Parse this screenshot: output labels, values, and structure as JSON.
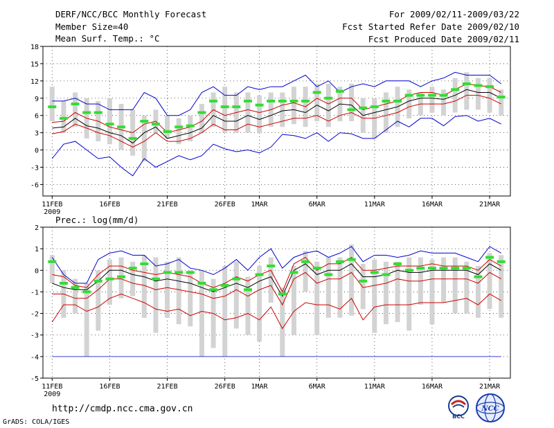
{
  "header": {
    "title": "DERF/NCC/BCC Monthly Forecast",
    "member_size": "Member Size=40",
    "range": "For 2009/02/11-2009/03/22",
    "started": "Fcst Started Refer Date 2009/02/10",
    "produced": "Fcst Produced Date 2009/02/11"
  },
  "footer": {
    "url": "http://cmdp.ncc.cma.gov.cn",
    "grads": "GrADS: COLA/IGES",
    "logo_left": "BCC",
    "logo_right": "NCC"
  },
  "colors": {
    "max_min": "#0000cc",
    "quartile": "#cc0000",
    "median": "#000000",
    "obs": "#33dd33",
    "bar": "#d3d3d3",
    "grid": "#333333"
  },
  "chart_data": [
    {
      "type": "line",
      "title": "Mean Surf. Temp.: °C",
      "x_tick_labels": [
        "11FEB",
        "16FEB",
        "21FEB",
        "26FEB",
        "1MAR",
        "6MAR",
        "11MAR",
        "16MAR",
        "21MAR"
      ],
      "x_tick_days": [
        0,
        5,
        10,
        15,
        18,
        23,
        28,
        33,
        38
      ],
      "year_label": "2009",
      "xlim": [
        -0.8,
        39.8
      ],
      "ylim": [
        -8,
        18
      ],
      "y_ticks": [
        -6,
        -3,
        0,
        3,
        6,
        9,
        12,
        15,
        18
      ],
      "grid": true,
      "series": [
        {
          "name": "max",
          "values": [
            -1.5,
            1,
            1.5,
            0,
            -1.5,
            -1.2,
            -3,
            -4.5,
            -1.5,
            -3,
            -2,
            -1,
            -1.7,
            -1,
            1,
            0.2,
            -0.3,
            0,
            -0.5,
            0.5,
            2.7,
            2.5,
            2,
            3,
            1.5,
            3,
            2.8,
            2,
            2,
            3.5,
            5,
            4,
            5.5,
            5.5,
            4.2,
            5.8,
            6,
            5,
            5.5,
            4.5
          ]
        },
        {
          "name": "q1",
          "values": [
            2.8,
            3.2,
            4.5,
            3.8,
            3,
            2.5,
            1.5,
            0.5,
            1.5,
            3,
            1.5,
            1.5,
            2,
            3,
            4.5,
            3.5,
            3.5,
            4.5,
            4,
            4.5,
            5,
            5.5,
            5.5,
            6,
            5,
            6,
            6.5,
            5.5,
            5.5,
            6,
            6.5,
            7.5,
            8,
            8,
            8,
            8.5,
            9.5,
            9.5,
            9,
            8
          ]
        },
        {
          "name": "median",
          "values": [
            3.8,
            4,
            5.5,
            4.2,
            3.8,
            3,
            2.5,
            1.2,
            3,
            4,
            2,
            2.5,
            3,
            3.8,
            6,
            5,
            5,
            6,
            5.3,
            6,
            6.8,
            7,
            6.5,
            7.8,
            6.8,
            8,
            7.8,
            6,
            6.5,
            7,
            7.5,
            8.5,
            9,
            9,
            8.8,
            9.5,
            10.5,
            10,
            10,
            9
          ]
        },
        {
          "name": "q3",
          "values": [
            4.8,
            5,
            6.5,
            5.5,
            5,
            4,
            3.5,
            3,
            4.5,
            5,
            3,
            3.5,
            4,
            5,
            7,
            6,
            6.5,
            7,
            6.5,
            7,
            7.8,
            8.2,
            7.5,
            9,
            8,
            9,
            9,
            7,
            7.5,
            8,
            8.5,
            9.5,
            10,
            10,
            9.5,
            10.5,
            11.5,
            11.2,
            11,
            10
          ]
        },
        {
          "name": "min",
          "values": [
            8.5,
            8.5,
            9,
            8,
            8,
            7,
            7,
            7,
            10,
            9,
            6,
            6,
            7,
            10,
            11,
            9.5,
            9.5,
            11,
            10.5,
            11,
            11,
            12,
            13,
            11,
            12,
            10,
            11,
            11.5,
            11,
            12,
            12,
            12,
            11,
            12,
            12.5,
            13.5,
            13,
            13,
            13,
            11.5
          ]
        },
        {
          "name": "box_low",
          "values": [
            5,
            3,
            4,
            2,
            1.5,
            1,
            0,
            -1,
            -2,
            3,
            2,
            1,
            1.5,
            3,
            4,
            3,
            3,
            3,
            3,
            4,
            4,
            4.5,
            4,
            5,
            4,
            5,
            5,
            3,
            2,
            3,
            4,
            5.5,
            6,
            6.5,
            6,
            6.5,
            7,
            7,
            6.5,
            6
          ]
        },
        {
          "name": "box_high",
          "values": [
            11,
            8.5,
            10,
            9,
            8.5,
            9,
            8,
            7,
            6,
            7,
            6,
            5.5,
            6,
            8,
            10,
            11,
            10,
            10,
            9.5,
            10,
            10,
            11,
            11,
            11.5,
            11.5,
            11,
            11.5,
            9,
            9,
            10,
            11,
            10.5,
            10,
            11,
            10.5,
            12.5,
            13.5,
            12.5,
            12.5,
            10.5
          ]
        },
        {
          "name": "obs",
          "values": [
            7.5,
            5.5,
            8,
            6.5,
            6.5,
            4.5,
            4,
            2,
            5,
            4.5,
            3.2,
            4,
            4.2,
            6.5,
            8.5,
            7.5,
            7.5,
            8.5,
            7.8,
            8.5,
            8.5,
            8.5,
            8.5,
            10,
            9,
            10.2,
            7,
            7.3,
            7.5,
            8.5,
            8.5,
            9.5,
            9.5,
            9.5,
            9.5,
            10.5,
            11.5,
            11.2,
            11,
            9.2
          ]
        }
      ]
    },
    {
      "type": "line",
      "title": "Prec.: log(mm/d)",
      "x_tick_labels": [
        "11FEB",
        "16FEB",
        "21FEB",
        "26FEB",
        "1MAR",
        "6MAR",
        "11MAR",
        "16MAR",
        "21MAR"
      ],
      "x_tick_days": [
        0,
        5,
        10,
        15,
        18,
        23,
        28,
        33,
        38
      ],
      "year_label": "2009",
      "xlim": [
        -0.8,
        39.8
      ],
      "ylim": [
        -5,
        2
      ],
      "y_ticks": [
        -5,
        -4,
        -3,
        -2,
        -1,
        0,
        1,
        2
      ],
      "grid": true,
      "series": [
        {
          "name": "max",
          "values": [
            0.6,
            -0.2,
            -0.6,
            -0.6,
            0.5,
            0.8,
            0.9,
            0.7,
            0.7,
            0.2,
            0.3,
            0.5,
            0.1,
            0,
            -0.2,
            0.1,
            0.5,
            0,
            0.6,
            1,
            0.1,
            0.6,
            0.8,
            0.9,
            0.6,
            0.8,
            1.1,
            0.4,
            0.7,
            0.7,
            0.6,
            0.7,
            0.9,
            0.8,
            0.8,
            0.8,
            0.6,
            0.4,
            1.1,
            0.8
          ]
        },
        {
          "name": "q3",
          "values": [
            -0.2,
            -0.3,
            -0.7,
            -0.8,
            -0.2,
            0.2,
            0.2,
            0,
            -0.1,
            -0.2,
            -0.1,
            -0.2,
            -0.3,
            -0.6,
            -0.8,
            -0.6,
            -0.3,
            -0.5,
            -0.2,
            0,
            -1,
            0.3,
            0.6,
            0,
            0.3,
            0.3,
            0.6,
            0,
            0,
            0.1,
            0.2,
            0.2,
            0.2,
            0.3,
            0.2,
            0.2,
            0.2,
            0,
            0.5,
            0.2
          ]
        },
        {
          "name": "median",
          "values": [
            -0.6,
            -0.8,
            -0.9,
            -0.9,
            -0.5,
            0,
            0,
            -0.2,
            -0.3,
            -0.5,
            -0.4,
            -0.5,
            -0.6,
            -0.8,
            -1,
            -0.8,
            -0.6,
            -0.8,
            -0.5,
            -0.3,
            -1.2,
            0,
            0.3,
            -0.2,
            0,
            0,
            0.3,
            -0.3,
            -0.3,
            -0.2,
            0,
            -0.1,
            -0.1,
            0,
            0,
            0,
            0,
            -0.2,
            0.3,
            0
          ]
        },
        {
          "name": "q1",
          "values": [
            -1.1,
            -1.1,
            -1.3,
            -1.3,
            -0.9,
            -0.4,
            -0.4,
            -0.6,
            -0.7,
            -0.9,
            -0.8,
            -0.9,
            -1,
            -1.1,
            -1.3,
            -1.2,
            -0.9,
            -1.2,
            -0.9,
            -0.7,
            -1.6,
            -0.4,
            -0.1,
            -0.6,
            -0.4,
            -0.4,
            -0.1,
            -0.8,
            -0.7,
            -0.6,
            -0.4,
            -0.5,
            -0.5,
            -0.4,
            -0.4,
            -0.4,
            -0.4,
            -0.6,
            -0.1,
            -0.4
          ]
        },
        {
          "name": "min",
          "values": [
            -2.4,
            -1.6,
            -1.6,
            -1.9,
            -1.7,
            -1.3,
            -1.1,
            -1.3,
            -1.5,
            -1.8,
            -1.9,
            -1.8,
            -2.1,
            -1.9,
            -2,
            -2.3,
            -2.2,
            -2,
            -2.3,
            -1.7,
            -2.7,
            -1.9,
            -1.5,
            -1.6,
            -1.6,
            -1.8,
            -1.3,
            -2.3,
            -1.7,
            -1.6,
            -1.6,
            -1.6,
            -1.5,
            -1.5,
            -1.5,
            -1.4,
            -1.3,
            -1.6,
            -1.1,
            -1.4
          ]
        },
        {
          "name": "lower_limit",
          "values": [
            -4,
            -4,
            -4,
            -4,
            -4,
            -4,
            -4,
            -4,
            -4,
            -4,
            -4,
            -4,
            -4,
            -4,
            -4,
            -4,
            -4,
            -4,
            -4,
            -4,
            -4,
            -4,
            -4,
            -4,
            -4,
            -4,
            -4,
            -4,
            -4,
            -4,
            -4,
            -4,
            -4,
            -4,
            -4,
            -4,
            -4,
            -4,
            -4,
            -4
          ]
        },
        {
          "name": "box_low",
          "values": [
            -0.6,
            -2.2,
            -2,
            -4,
            -2.8,
            -1.6,
            -1.3,
            -1.2,
            -2.2,
            -2.9,
            -2.2,
            -2.5,
            -2.6,
            -4,
            -3.6,
            -4,
            -2.7,
            -3,
            -3.3,
            -1.5,
            -4,
            -3,
            -1,
            -3,
            -2.2,
            -2.2,
            -2.1,
            -1.8,
            -2.9,
            -2.5,
            -2.4,
            -2.8,
            -1.6,
            -2.5,
            -1.5,
            -2,
            -2,
            -2.2,
            -1.8,
            -2.2
          ]
        },
        {
          "name": "box_high",
          "values": [
            0.7,
            0,
            -0.4,
            -0.6,
            0,
            0.5,
            0.6,
            0.4,
            0.7,
            0.6,
            0.4,
            0.6,
            0,
            0,
            -0.4,
            0.2,
            0.4,
            -0.3,
            0.2,
            0.6,
            -0.8,
            0.2,
            0.9,
            0.4,
            0.6,
            0.6,
            1.2,
            0.3,
            0.5,
            0.4,
            0.4,
            0.6,
            0.6,
            0.5,
            0.6,
            0.6,
            0.4,
            0.2,
            0.8,
            0.7
          ]
        },
        {
          "name": "obs",
          "values": [
            0.4,
            -0.6,
            -0.8,
            -1,
            -0.5,
            -0.4,
            -0.3,
            0.1,
            0.3,
            -0.4,
            -0.1,
            -0.1,
            -0.1,
            -0.6,
            -0.9,
            -0.7,
            -0.4,
            -0.9,
            -0.2,
            0.2,
            -1.1,
            -0.1,
            0.4,
            0.1,
            -0.2,
            0.4,
            0.5,
            -0.5,
            -0.1,
            -0.2,
            0.3,
            0,
            0.1,
            0.1,
            0.1,
            0.1,
            0.1,
            -0.3,
            0.6,
            0.4
          ]
        }
      ]
    }
  ]
}
